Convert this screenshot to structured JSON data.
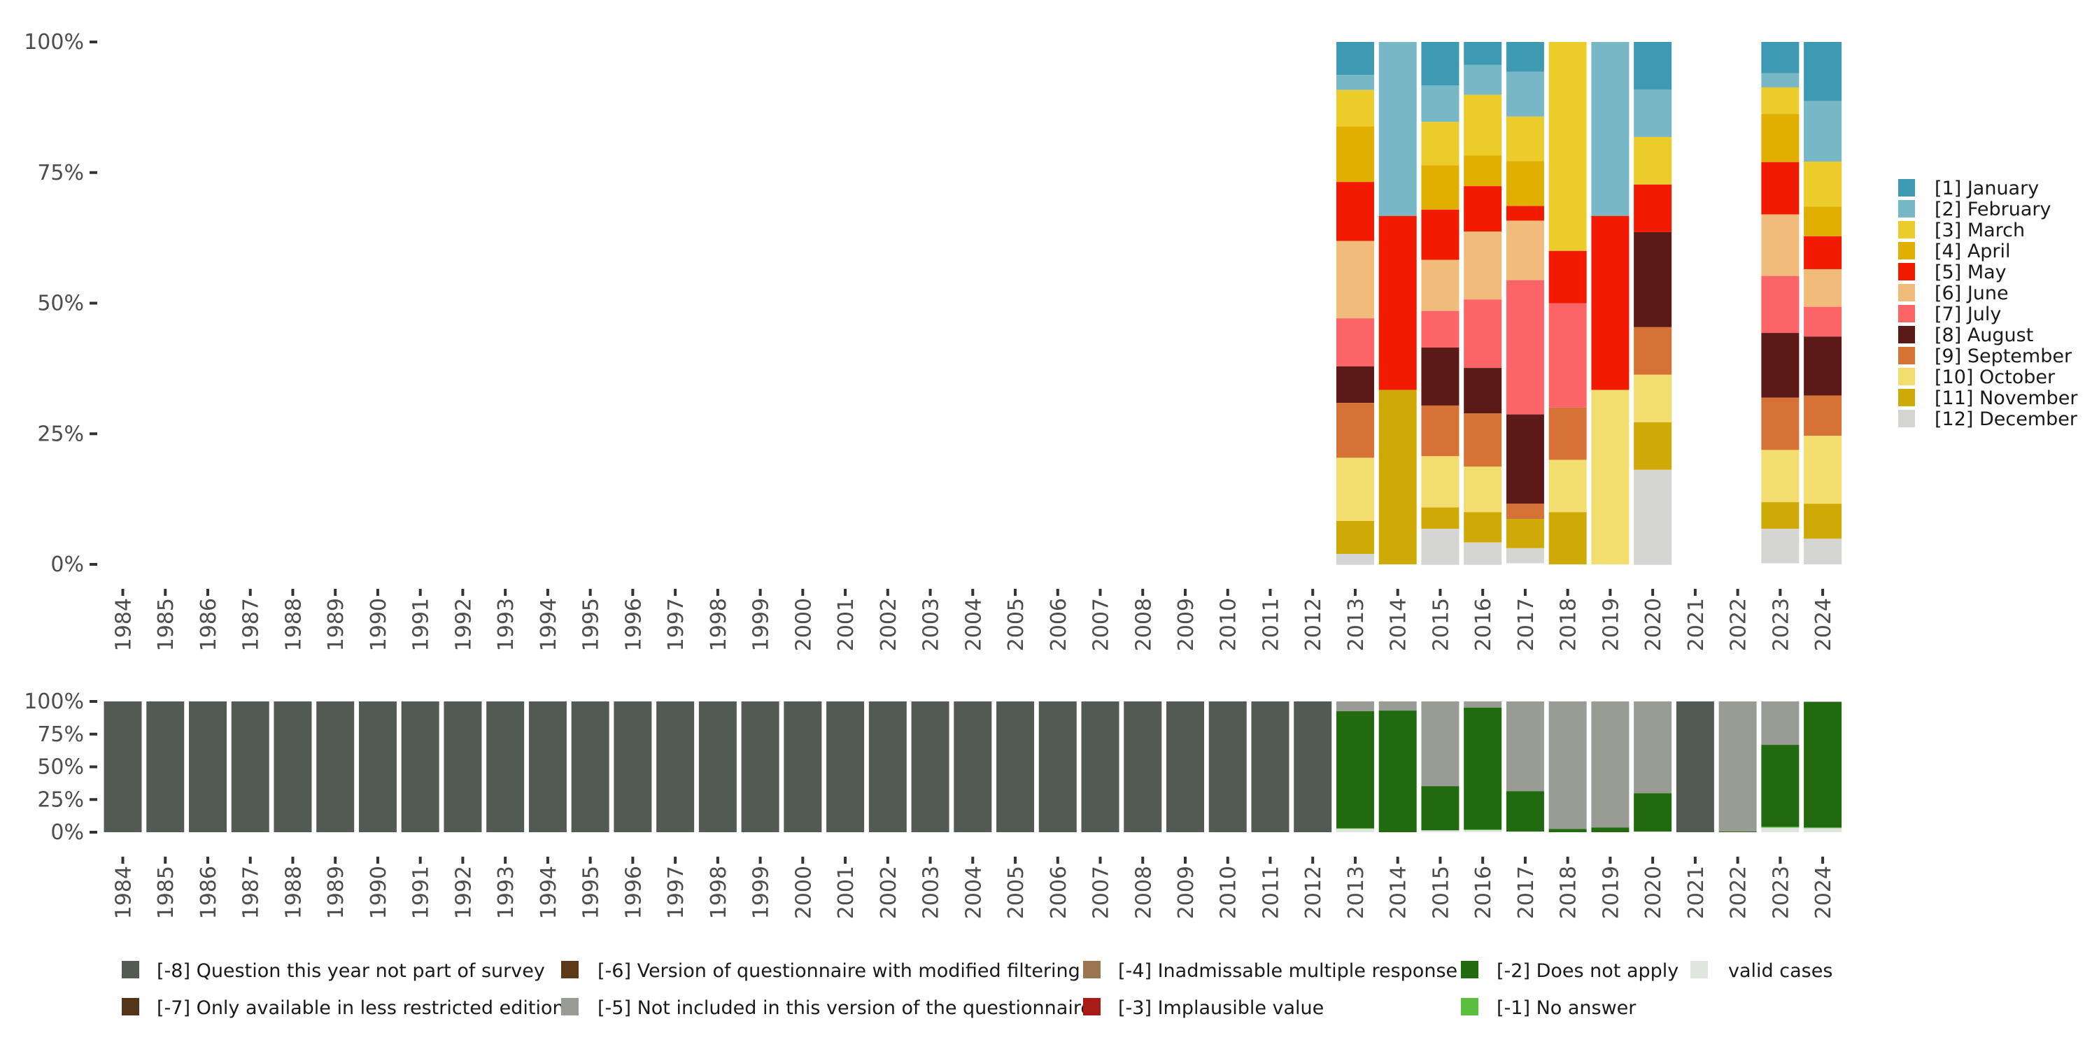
{
  "chart_data": [
    {
      "type": "bar",
      "stacked": true,
      "title": "",
      "xlabel": "",
      "ylabel": "",
      "ylim": [
        0,
        1
      ],
      "yticks": [
        "0%",
        "25%",
        "50%",
        "75%",
        "100%"
      ],
      "grid": false,
      "legend_position": "right",
      "categories": [
        "1984",
        "1985",
        "1986",
        "1987",
        "1988",
        "1989",
        "1990",
        "1991",
        "1992",
        "1993",
        "1994",
        "1995",
        "1996",
        "1997",
        "1998",
        "1999",
        "2000",
        "2001",
        "2002",
        "2003",
        "2004",
        "2005",
        "2006",
        "2007",
        "2008",
        "2009",
        "2010",
        "2011",
        "2012",
        "2013",
        "2014",
        "2015",
        "2016",
        "2017",
        "2018",
        "2019",
        "2020",
        "2021",
        "2022",
        "2023",
        "2024"
      ],
      "series": [
        {
          "name": "[1] January",
          "color": "#3D9AB2",
          "values": {
            "2013": 0.063,
            "2014": 0,
            "2015": 0.083,
            "2016": 0.044,
            "2017": 0.057,
            "2018": 0,
            "2019": 0,
            "2020": 0.091,
            "2023": 0.06,
            "2024": 0.113
          }
        },
        {
          "name": "[2] February",
          "color": "#78B7C5",
          "values": {
            "2013": 0.029,
            "2014": 0.333,
            "2015": 0.07,
            "2016": 0.057,
            "2017": 0.086,
            "2018": 0,
            "2019": 0.333,
            "2020": 0.091,
            "2023": 0.027,
            "2024": 0.116
          }
        },
        {
          "name": "[3] March",
          "color": "#EBCC2A",
          "values": {
            "2013": 0.07,
            "2014": 0,
            "2015": 0.083,
            "2016": 0.116,
            "2017": 0.085,
            "2018": 0.4,
            "2019": 0,
            "2020": 0.091,
            "2023": 0.051,
            "2024": 0.086
          }
        },
        {
          "name": "[4] April",
          "color": "#E1AF00",
          "values": {
            "2013": 0.106,
            "2014": 0,
            "2015": 0.085,
            "2016": 0.059,
            "2017": 0.086,
            "2018": 0,
            "2019": 0,
            "2020": 0,
            "2023": 0.092,
            "2024": 0.057
          }
        },
        {
          "name": "[5] May",
          "color": "#F21A00",
          "values": {
            "2013": 0.113,
            "2014": 0.333,
            "2015": 0.096,
            "2016": 0.087,
            "2017": 0.028,
            "2018": 0.1,
            "2019": 0.333,
            "2020": 0.091,
            "2023": 0.1,
            "2024": 0.063
          }
        },
        {
          "name": "[6] June",
          "color": "#F1BB7B",
          "values": {
            "2013": 0.148,
            "2014": 0,
            "2015": 0.098,
            "2016": 0.13,
            "2017": 0.114,
            "2018": 0,
            "2019": 0,
            "2020": 0,
            "2023": 0.118,
            "2024": 0.072
          }
        },
        {
          "name": "[7] July",
          "color": "#FD6467",
          "values": {
            "2013": 0.092,
            "2014": 0,
            "2015": 0.07,
            "2016": 0.131,
            "2017": 0.257,
            "2018": 0.2,
            "2019": 0,
            "2020": 0,
            "2023": 0.109,
            "2024": 0.057
          }
        },
        {
          "name": "[8] August",
          "color": "#5B1A18",
          "values": {
            "2013": 0.07,
            "2014": 0,
            "2015": 0.111,
            "2016": 0.087,
            "2017": 0.171,
            "2018": 0,
            "2019": 0,
            "2020": 0.182,
            "2023": 0.124,
            "2024": 0.113
          }
        },
        {
          "name": "[9] September",
          "color": "#D67236",
          "values": {
            "2013": 0.105,
            "2014": 0,
            "2015": 0.097,
            "2016": 0.102,
            "2017": 0.029,
            "2018": 0.1,
            "2019": 0,
            "2020": 0.091,
            "2023": 0.1,
            "2024": 0.077
          }
        },
        {
          "name": "[10] October",
          "color": "#F2DE6E",
          "values": {
            "2013": 0.121,
            "2014": 0,
            "2015": 0.098,
            "2016": 0.087,
            "2017": 0,
            "2018": 0.1,
            "2019": 0.334,
            "2020": 0.091,
            "2023": 0.1,
            "2024": 0.13
          }
        },
        {
          "name": "[11] November",
          "color": "#CFAA07",
          "values": {
            "2013": 0.063,
            "2014": 0.334,
            "2015": 0.041,
            "2016": 0.058,
            "2017": 0.056,
            "2018": 0.1,
            "2019": 0,
            "2020": 0.091,
            "2023": 0.051,
            "2024": 0.067
          }
        },
        {
          "name": "[12] December",
          "color": "#D5D5D3",
          "values": {
            "2013": 0.021,
            "2014": 0,
            "2015": 0.069,
            "2016": 0.043,
            "2017": 0.029,
            "2018": 0,
            "2019": 0,
            "2020": 0.182,
            "2023": 0.066,
            "2024": 0.049
          }
        }
      ]
    },
    {
      "type": "bar",
      "stacked": true,
      "title": "",
      "xlabel": "",
      "ylabel": "",
      "ylim": [
        0,
        1
      ],
      "yticks": [
        "0%",
        "25%",
        "50%",
        "75%",
        "100%"
      ],
      "grid": false,
      "legend_position": "bottom",
      "categories": [
        "1984",
        "1985",
        "1986",
        "1987",
        "1988",
        "1989",
        "1990",
        "1991",
        "1992",
        "1993",
        "1994",
        "1995",
        "1996",
        "1997",
        "1998",
        "1999",
        "2000",
        "2001",
        "2002",
        "2003",
        "2004",
        "2005",
        "2006",
        "2007",
        "2008",
        "2009",
        "2010",
        "2011",
        "2012",
        "2013",
        "2014",
        "2015",
        "2016",
        "2017",
        "2018",
        "2019",
        "2020",
        "2021",
        "2022",
        "2023",
        "2024"
      ],
      "series": [
        {
          "name": "[-8] Question this year not part of survey",
          "color": "#535A53",
          "values": {
            "1984": 1,
            "1985": 1,
            "1986": 1,
            "1987": 1,
            "1988": 1,
            "1989": 1,
            "1990": 1,
            "1991": 1,
            "1992": 1,
            "1993": 1,
            "1994": 1,
            "1995": 1,
            "1996": 1,
            "1997": 1,
            "1998": 1,
            "1999": 1,
            "2000": 1,
            "2001": 1,
            "2002": 1,
            "2003": 1,
            "2004": 1,
            "2005": 1,
            "2006": 1,
            "2007": 1,
            "2008": 1,
            "2009": 1,
            "2010": 1,
            "2011": 1,
            "2012": 1,
            "2021": 1
          }
        },
        {
          "name": "[-7] Only available in less restricted edition",
          "color": "#553519",
          "values": {}
        },
        {
          "name": "[-6] Version of questionnaire with modified filtering",
          "color": "#5B3A1A",
          "values": {}
        },
        {
          "name": "[-5] Not included in this version of the questionnaire",
          "color": "#989C94",
          "values": {
            "2013": 0.075,
            "2014": 0.07,
            "2015": 0.648,
            "2016": 0.048,
            "2017": 0.686,
            "2018": 0.975,
            "2019": 0.964,
            "2020": 0.702,
            "2022": 0.995,
            "2023": 0.332,
            "2024": 0.005
          }
        },
        {
          "name": "[-4] Inadmissable multiple response",
          "color": "#9A7550",
          "values": {}
        },
        {
          "name": "[-3] Implausible value",
          "color": "#A91B17",
          "values": {}
        },
        {
          "name": "[-2] Does not apply",
          "color": "#226A0F",
          "values": {
            "2013": 0.895,
            "2014": 0.93,
            "2015": 0.338,
            "2016": 0.932,
            "2017": 0.309,
            "2018": 0.025,
            "2019": 0.036,
            "2020": 0.293,
            "2022": 0.005,
            "2023": 0.627,
            "2024": 0.959
          }
        },
        {
          "name": "[-1] No answer",
          "color": "#5BBE3E",
          "values": {
            "2013": 0.005,
            "2016": 0.005,
            "2023": 0.007,
            "2024": 0.006
          }
        },
        {
          "name": "valid cases",
          "color": "#E1E5E0",
          "values": {
            "2013": 0.025,
            "2015": 0.014,
            "2016": 0.015,
            "2017": 0.005,
            "2020": 0.005,
            "2023": 0.034,
            "2024": 0.03
          }
        }
      ]
    }
  ],
  "legend_top": {
    "items": [
      "[1] January",
      "[2] February",
      "[3] March",
      "[4] April",
      "[5] May",
      "[6] June",
      "[7] July",
      "[8] August",
      "[9] September",
      "[10] October",
      "[11] November",
      "[12] December"
    ]
  },
  "legend_bottom": {
    "row1": [
      "[-8] Question this year not part of survey",
      "[-6] Version of questionnaire with modified filtering",
      "[-4] Inadmissable multiple response",
      "[-2] Does not apply",
      "valid cases"
    ],
    "row2": [
      "[-7] Only available in less restricted edition",
      "[-5] Not included in this version of the questionnaire",
      "[-3] Implausible value",
      "[-1] No answer"
    ]
  }
}
